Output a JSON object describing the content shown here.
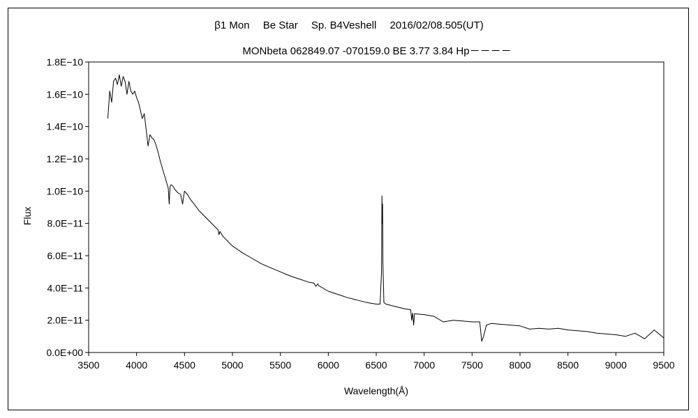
{
  "chart_data": {
    "type": "line",
    "title": "β1 Mon　 Be Star　 Sp. B4Veshell　 2016/02/08.505(UT)",
    "subtitle": "MONbeta 062849.07 -070159.0 BE 3.77 3.84 Hp－－－－",
    "xlabel": "Wavelength(Å)",
    "ylabel": "Flux",
    "xlim": [
      3500,
      9500
    ],
    "ylim": [
      0,
      1.8e-10
    ],
    "x_ticks": [
      3500,
      4000,
      4500,
      5000,
      5500,
      6000,
      6500,
      7000,
      7500,
      8000,
      8500,
      9000,
      9500
    ],
    "y_ticks": [
      0,
      2e-11,
      4e-11,
      6e-11,
      8e-11,
      1e-10,
      1.2e-10,
      1.4e-10,
      1.6e-10,
      1.8e-10
    ],
    "x_tick_labels": [
      "3500",
      "4000",
      "4500",
      "5000",
      "5500",
      "6000",
      "6500",
      "7000",
      "7500",
      "8000",
      "8500",
      "9000",
      "9500"
    ],
    "y_tick_labels": [
      "0.0E+00",
      "2.0E−11",
      "4.0E−11",
      "6.0E−11",
      "8.0E−11",
      "1.0E−10",
      "1.2E−10",
      "1.4E−10",
      "1.6E−10",
      "1.8E−10"
    ],
    "grid": false,
    "series": [
      {
        "color": "#000000",
        "x": [
          3700,
          3720,
          3740,
          3760,
          3780,
          3800,
          3820,
          3840,
          3860,
          3880,
          3900,
          3920,
          3940,
          3960,
          3980,
          4000,
          4020,
          4040,
          4060,
          4080,
          4100,
          4120,
          4140,
          4160,
          4180,
          4200,
          4220,
          4250,
          4280,
          4310,
          4330,
          4340,
          4350,
          4360,
          4380,
          4400,
          4430,
          4460,
          4480,
          4500,
          4530,
          4560,
          4600,
          4650,
          4700,
          4750,
          4800,
          4850,
          4860,
          4870,
          4900,
          4950,
          5000,
          5100,
          5200,
          5300,
          5400,
          5500,
          5600,
          5700,
          5800,
          5850,
          5870,
          5890,
          5900,
          6000,
          6100,
          6200,
          6300,
          6400,
          6500,
          6540,
          6555,
          6560,
          6563,
          6566,
          6570,
          6580,
          6600,
          6700,
          6800,
          6860,
          6870,
          6880,
          6890,
          6900,
          7000,
          7100,
          7200,
          7300,
          7400,
          7500,
          7580,
          7600,
          7620,
          7650,
          7700,
          7800,
          7900,
          8000,
          8100,
          8200,
          8300,
          8400,
          8500,
          8600,
          8700,
          8800,
          8900,
          9000,
          9100,
          9200,
          9300,
          9400,
          9500
        ],
        "y": [
          1.45e-10,
          1.62e-10,
          1.55e-10,
          1.68e-10,
          1.7e-10,
          1.66e-10,
          1.72e-10,
          1.65e-10,
          1.71e-10,
          1.68e-10,
          1.6e-10,
          1.68e-10,
          1.62e-10,
          1.6e-10,
          1.62e-10,
          1.58e-10,
          1.55e-10,
          1.5e-10,
          1.45e-10,
          1.48e-10,
          1.38e-10,
          1.28e-10,
          1.35e-10,
          1.33e-10,
          1.32e-10,
          1.29e-10,
          1.25e-10,
          1.18e-10,
          1.12e-10,
          1.06e-10,
          1.02e-10,
          9.2e-11,
          1.03e-10,
          1.04e-10,
          1.03e-10,
          1.01e-10,
          9.9e-11,
          9.8e-11,
          9.2e-11,
          1e-10,
          9.8e-11,
          9.5e-11,
          9.2e-11,
          8.8e-11,
          8.5e-11,
          8.2e-11,
          7.9e-11,
          7.6e-11,
          7.3e-11,
          7.5e-11,
          7.2e-11,
          6.9e-11,
          6.6e-11,
          6.2e-11,
          5.85e-11,
          5.5e-11,
          5.25e-11,
          5e-11,
          4.75e-11,
          4.55e-11,
          4.35e-11,
          4.3e-11,
          4.1e-11,
          4.25e-11,
          4.15e-11,
          3.8e-11,
          3.6e-11,
          3.4e-11,
          3.25e-11,
          3.1e-11,
          3e-11,
          3e-11,
          5e-11,
          9.7e-11,
          8e-11,
          9.2e-11,
          5.5e-11,
          3.1e-11,
          3e-11,
          2.85e-11,
          2.7e-11,
          2.65e-11,
          2e-11,
          2.45e-11,
          1.7e-11,
          2.4e-11,
          2.35e-11,
          2.25e-11,
          1.9e-11,
          2e-11,
          1.95e-11,
          1.9e-11,
          1.9e-11,
          7e-12,
          1e-11,
          1.7e-11,
          1.8e-11,
          1.75e-11,
          1.7e-11,
          1.65e-11,
          1.45e-11,
          1.5e-11,
          1.45e-11,
          1.5e-11,
          1.4e-11,
          1.35e-11,
          1.3e-11,
          1.2e-11,
          1.15e-11,
          1.1e-11,
          1e-11,
          1.2e-11,
          8.5e-12,
          1.4e-11,
          9e-12
        ]
      }
    ]
  }
}
